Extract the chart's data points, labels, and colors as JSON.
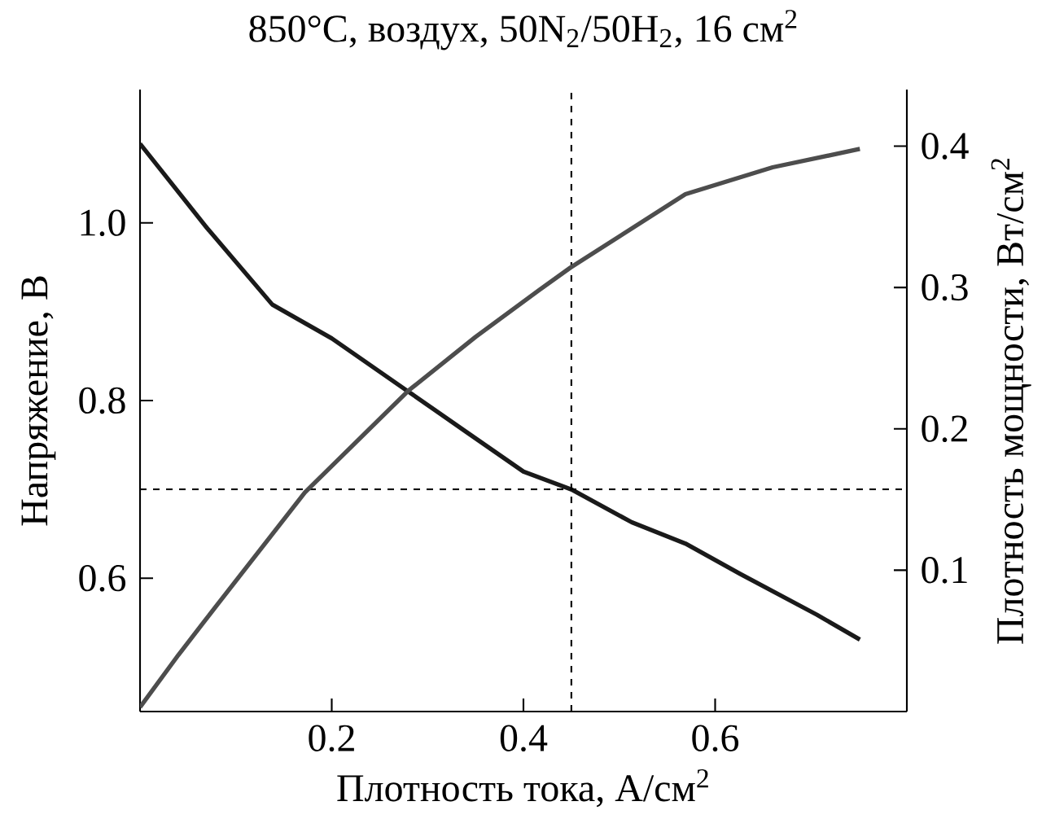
{
  "chart_data": {
    "type": "line",
    "title": "850°C, воздух, 50N$_{2}$/50H$_{2}$, 16 см$^{2}$",
    "xlabel": "Плотность тока, А/см$^{2}$",
    "ylabel": "Напряжение, В",
    "y2label": "Плотность мощности, Вт/см$^{2}$",
    "xlim": [
      0,
      0.8
    ],
    "ylim": [
      0.45,
      1.15
    ],
    "y2lim": [
      0,
      0.44
    ],
    "xticks": [
      0.2,
      0.4,
      0.6
    ],
    "yticks": [
      0.6,
      0.8,
      {
        "value": 1.0,
        "label": "1.0"
      }
    ],
    "y2ticks": [
      0.1,
      0.2,
      0.3,
      0.4
    ],
    "series": [
      {
        "color": "#1a1a1a",
        "x": [
          0,
          0.07,
          0.138,
          0.2,
          0.28,
          0.34,
          0.4,
          0.45,
          0.513,
          0.569,
          0.626,
          0.706,
          0.751
        ],
        "values": [
          1.089,
          0.994,
          0.908,
          0.87,
          0.81,
          0.765,
          0.72,
          0.7,
          0.663,
          0.639,
          0.605,
          0.559,
          0.531
        ]
      },
      {
        "color": "#4d4d4d",
        "axis": "y2",
        "x": [
          0,
          0.04,
          0.081,
          0.172,
          0.28,
          0.35,
          0.416,
          0.449,
          0.569,
          0.66,
          0.751
        ],
        "values": [
          0.003,
          0.04,
          0.076,
          0.155,
          0.227,
          0.265,
          0.298,
          0.314,
          0.366,
          0.385,
          0.398
        ]
      }
    ],
    "ref_lines": [
      {
        "axis": "x",
        "value": 0.45,
        "line_style": "dashed"
      },
      {
        "axis": "y",
        "value": 0.7,
        "line_style": "dashed"
      }
    ]
  }
}
